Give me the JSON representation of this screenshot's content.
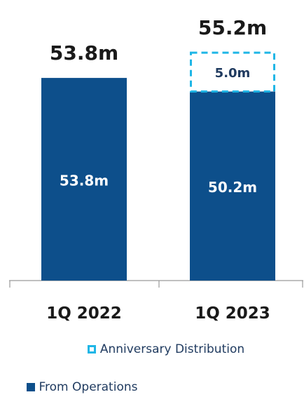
{
  "chart_data": {
    "type": "bar",
    "stacked": true,
    "categories": [
      "1Q 2022",
      "1Q 2023"
    ],
    "series": [
      {
        "name": "From Operations",
        "values": [
          53.8,
          50.2
        ],
        "labels": [
          "53.8m",
          "50.2m"
        ],
        "color": "#0d4f8b",
        "style": "solid"
      },
      {
        "name": "Anniversary Distribution",
        "values": [
          0,
          5.0
        ],
        "labels": [
          "",
          "5.0m"
        ],
        "color": "#1fb6e6",
        "style": "dashed-outline"
      }
    ],
    "totals": [
      53.8,
      55.2
    ],
    "total_labels": [
      "53.8m",
      "55.2m"
    ],
    "legend_position": "bottom",
    "grid": false
  }
}
